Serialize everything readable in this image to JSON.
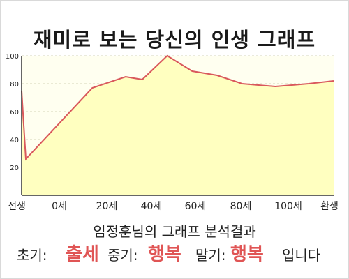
{
  "title": "재미로 보는 당신의 인생 그래프",
  "chart_data": {
    "type": "area",
    "title": "재미로 보는 당신의 인생 그래프",
    "xlabel": "",
    "ylabel": "",
    "ylim": [
      0,
      100
    ],
    "yticks": [
      20,
      40,
      60,
      80,
      100
    ],
    "grid": true,
    "x_tick_labels": [
      "전생",
      "0세",
      "20세",
      "40세",
      "60세",
      "80세",
      "100세",
      "환생"
    ],
    "series": [
      {
        "x": [
          -1,
          0,
          16,
          24,
          28,
          34,
          40,
          46,
          52,
          60,
          68,
          74
        ],
        "values": [
          75,
          26,
          77,
          85,
          83,
          100,
          89,
          86,
          80,
          78,
          80,
          82
        ]
      }
    ],
    "colors": {
      "line": "#d9585c",
      "fill": "#ffffc0",
      "plot_bg": "#fffff0",
      "grid": "#d6d6b8",
      "axis": "#333333"
    }
  },
  "result": {
    "heading": "임정훈님의 그래프 분석결과",
    "early_label": "초기:",
    "early_value": "출세",
    "mid_label": "중기:",
    "mid_value": "행복",
    "late_label": "말기:",
    "late_value": "행복",
    "ending": "입니다"
  }
}
